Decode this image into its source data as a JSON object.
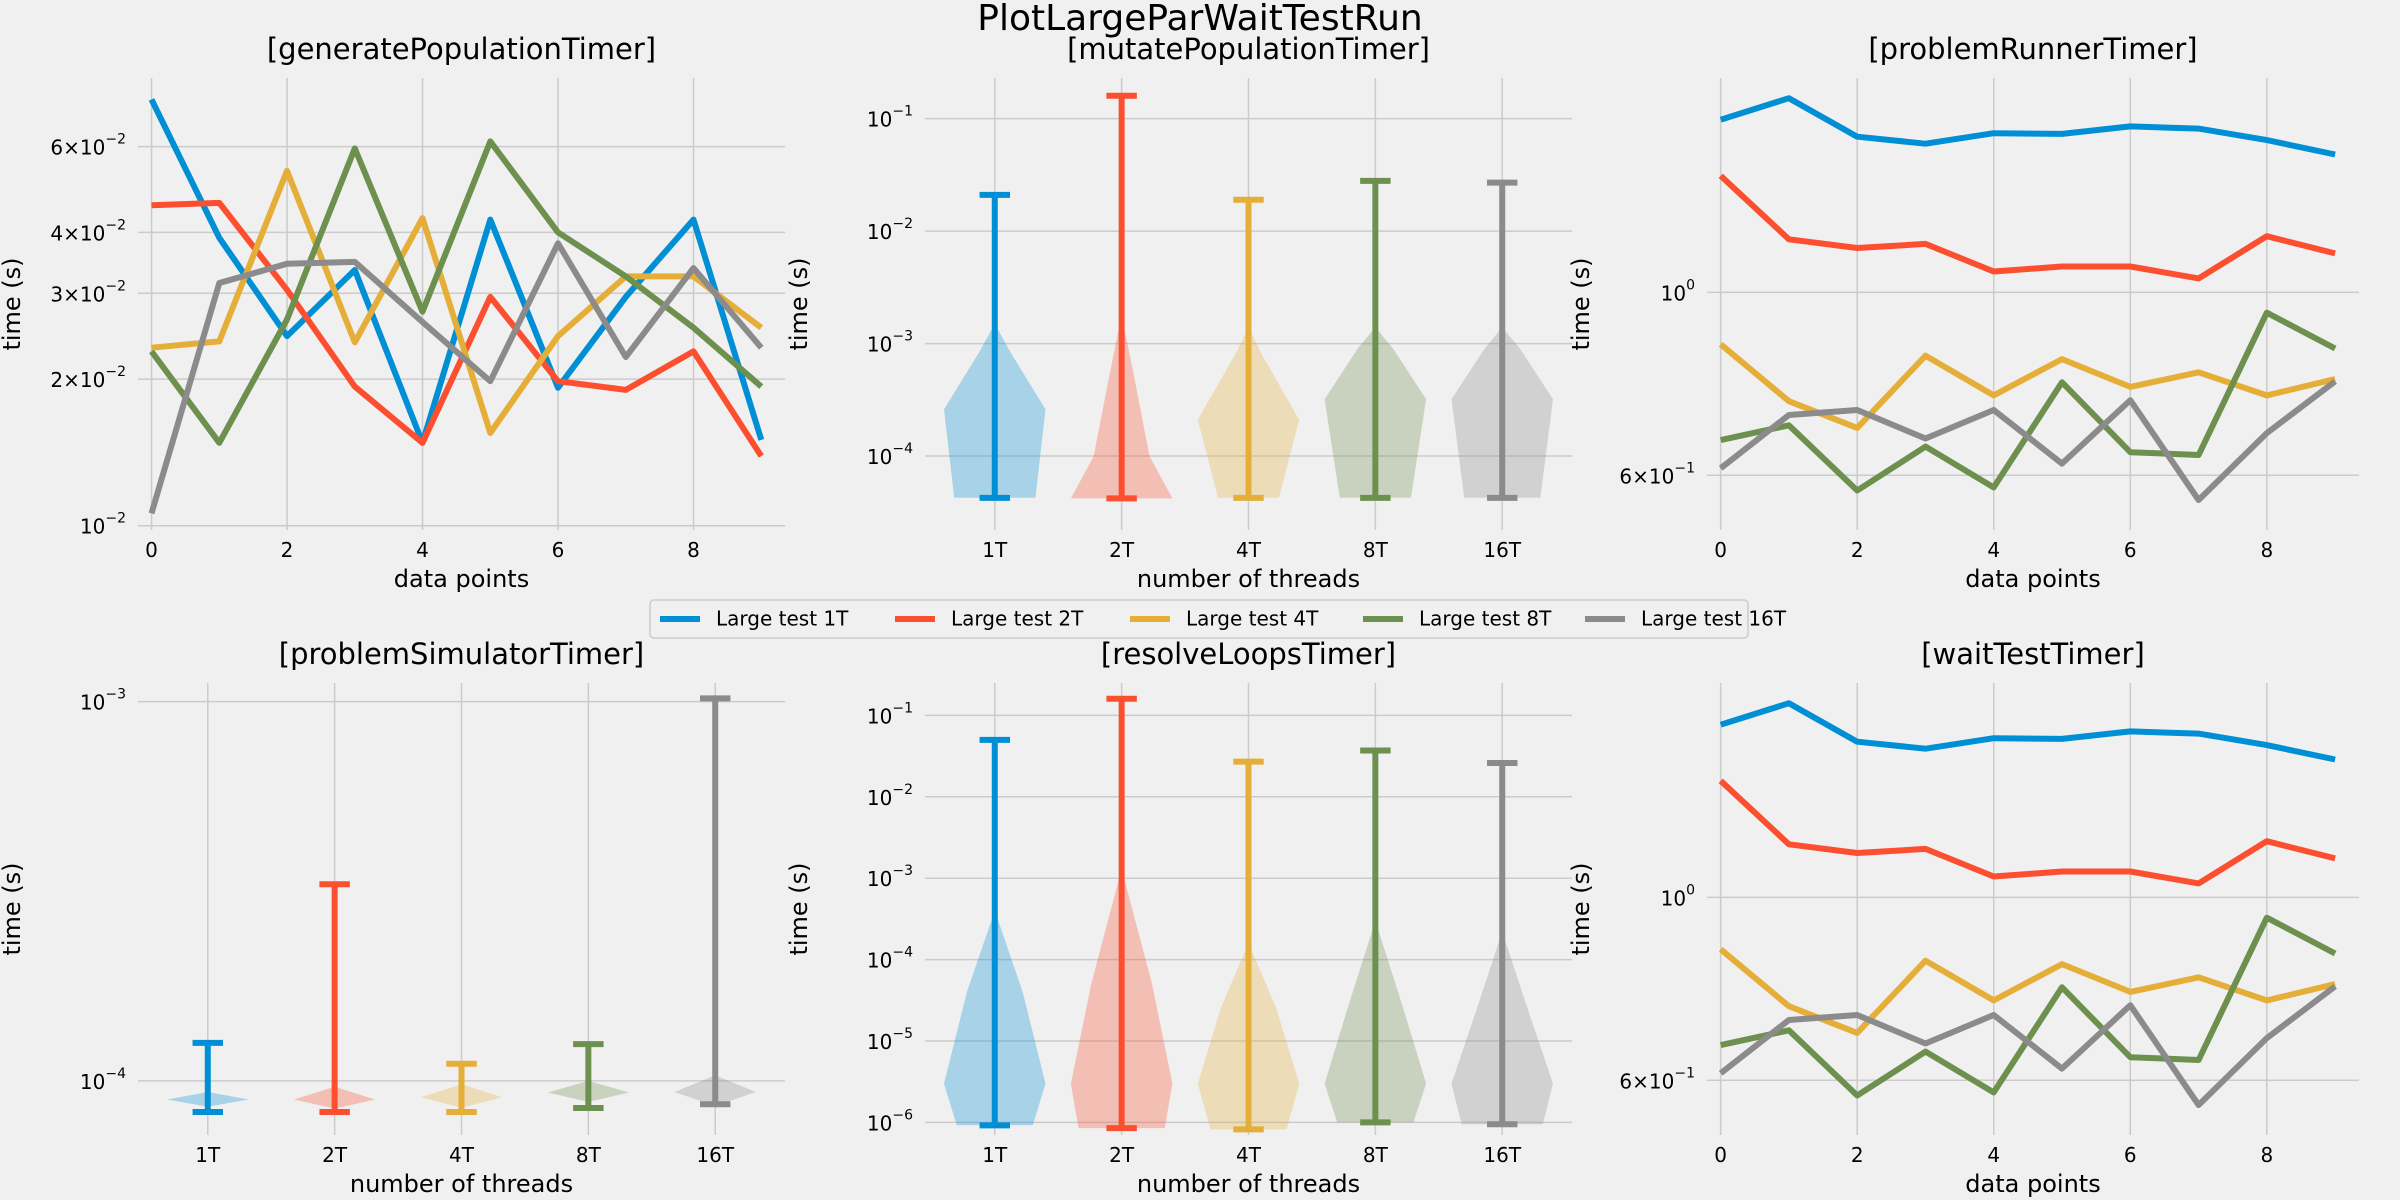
{
  "figure": {
    "title": "PlotLargeParWaitTestRun",
    "legend": [
      {
        "label": "Large test 1T",
        "color": "#008fd5"
      },
      {
        "label": "Large test 2T",
        "color": "#fc4f30"
      },
      {
        "label": "Large test 4T",
        "color": "#e5ae38"
      },
      {
        "label": "Large test 8T",
        "color": "#6d904f"
      },
      {
        "label": "Large test 16T",
        "color": "#8b8b8b"
      }
    ],
    "legend_position": "center, between rows"
  },
  "chart_data": [
    {
      "type": "line",
      "title": "[generatePopulationTimer]",
      "xlabel": "data points",
      "ylabel": "time (s)",
      "yscale": "log",
      "xlim": [
        -0.2,
        9.35
      ],
      "ylim": [
        0.0098,
        0.083
      ],
      "xticks": [
        {
          "v": 0,
          "label": "0"
        },
        {
          "v": 2,
          "label": "2"
        },
        {
          "v": 4,
          "label": "4"
        },
        {
          "v": 6,
          "label": "6"
        },
        {
          "v": 8,
          "label": "8"
        }
      ],
      "yticks": [
        {
          "v": 0.01,
          "b": "10",
          "e": "−2"
        },
        {
          "v": 0.02,
          "b": "2×10",
          "e": "−2"
        },
        {
          "v": 0.03,
          "b": "3×10",
          "e": "−2"
        },
        {
          "v": 0.04,
          "b": "4×10",
          "e": "−2"
        },
        {
          "v": 0.06,
          "b": "6×10",
          "e": "−2"
        }
      ],
      "grid": true,
      "x": [
        0,
        1,
        2,
        3,
        4,
        5,
        6,
        7,
        8,
        9
      ],
      "series": [
        {
          "name": "Large test 1T",
          "color": "#008fd5",
          "values": [
            0.075,
            0.039,
            0.0245,
            0.0335,
            0.0148,
            0.0425,
            0.0192,
            0.0295,
            0.0425,
            0.015
          ]
        },
        {
          "name": "Large test 2T",
          "color": "#fc4f30",
          "values": [
            0.0455,
            0.046,
            0.0305,
            0.0193,
            0.0148,
            0.0295,
            0.0198,
            0.019,
            0.0228,
            0.0139
          ]
        },
        {
          "name": "Large test 4T",
          "color": "#e5ae38",
          "values": [
            0.0232,
            0.0239,
            0.0535,
            0.0238,
            0.0428,
            0.0155,
            0.0245,
            0.0325,
            0.0325,
            0.0255
          ]
        },
        {
          "name": "Large test 8T",
          "color": "#6d904f",
          "values": [
            0.0228,
            0.0148,
            0.0265,
            0.0595,
            0.0275,
            0.0615,
            0.04,
            0.0325,
            0.0255,
            0.0193
          ]
        },
        {
          "name": "Large test 16T",
          "color": "#8b8b8b",
          "values": [
            0.0106,
            0.0315,
            0.0345,
            0.0348,
            0.0262,
            0.0198,
            0.038,
            0.0222,
            0.0338,
            0.0232
          ]
        }
      ]
    },
    {
      "type": "violin",
      "title": "[mutatePopulationTimer]",
      "xlabel": "number of threads",
      "ylabel": "time (s)",
      "yscale": "log",
      "xlim": [
        0.45,
        5.55
      ],
      "ylim": [
        2.2e-05,
        0.23
      ],
      "yticks": [
        {
          "v": 0.0001,
          "b": "10",
          "e": "−4"
        },
        {
          "v": 0.001,
          "b": "10",
          "e": "−3"
        },
        {
          "v": 0.01,
          "b": "10",
          "e": "−2"
        },
        {
          "v": 0.1,
          "b": "10",
          "e": "−1"
        }
      ],
      "grid": true,
      "categories": [
        "1T",
        "2T",
        "4T",
        "8T",
        "16T"
      ],
      "groups": [
        {
          "color": "#008fd5",
          "min": 4.25e-05,
          "max": 0.021,
          "density": [
            [
              4.25e-05,
              0.8
            ],
            [
              0.00026,
              1.0
            ],
            [
              0.00085,
              0.3
            ],
            [
              0.0015,
              0.0
            ]
          ]
        },
        {
          "color": "#fc4f30",
          "min": 4.2e-05,
          "max": 0.16,
          "density": [
            [
              4.2e-05,
              1.0
            ],
            [
              0.0001,
              0.55
            ],
            [
              0.0005,
              0.25
            ],
            [
              0.0018,
              0.0
            ]
          ]
        },
        {
          "color": "#e5ae38",
          "min": 4.25e-05,
          "max": 0.019,
          "density": [
            [
              4.25e-05,
              0.6
            ],
            [
              0.00021,
              1.0
            ],
            [
              0.00082,
              0.25
            ],
            [
              0.0014,
              0.0
            ]
          ]
        },
        {
          "color": "#6d904f",
          "min": 4.25e-05,
          "max": 0.028,
          "density": [
            [
              4.25e-05,
              0.7
            ],
            [
              0.00032,
              1.0
            ],
            [
              0.0009,
              0.35
            ],
            [
              0.0014,
              0.0
            ]
          ]
        },
        {
          "color": "#8b8b8b",
          "min": 4.25e-05,
          "max": 0.027,
          "density": [
            [
              4.25e-05,
              0.75
            ],
            [
              0.00032,
              1.0
            ],
            [
              0.0009,
              0.35
            ],
            [
              0.0014,
              0.0
            ]
          ]
        }
      ]
    },
    {
      "type": "line",
      "title": "[problemRunnerTimer]",
      "xlabel": "data points",
      "ylabel": "time (s)",
      "yscale": "log",
      "xlim": [
        -0.2,
        9.35
      ],
      "ylim": [
        0.515,
        1.82
      ],
      "xticks": [
        {
          "v": 0,
          "label": "0"
        },
        {
          "v": 2,
          "label": "2"
        },
        {
          "v": 4,
          "label": "4"
        },
        {
          "v": 6,
          "label": "6"
        },
        {
          "v": 8,
          "label": "8"
        }
      ],
      "yticks": [
        {
          "v": 0.6,
          "b": "6×10",
          "e": "−1"
        },
        {
          "v": 1.0,
          "b": "10",
          "e": "0"
        }
      ],
      "grid": true,
      "x": [
        0,
        1,
        2,
        3,
        4,
        5,
        6,
        7,
        8,
        9
      ],
      "series": [
        {
          "name": "Large test 1T",
          "color": "#008fd5",
          "values": [
            1.62,
            1.72,
            1.545,
            1.515,
            1.56,
            1.557,
            1.59,
            1.58,
            1.53,
            1.47
          ]
        },
        {
          "name": "Large test 2T",
          "color": "#fc4f30",
          "values": [
            1.385,
            1.16,
            1.132,
            1.145,
            1.06,
            1.075,
            1.075,
            1.04,
            1.17,
            1.115
          ]
        },
        {
          "name": "Large test 4T",
          "color": "#e5ae38",
          "values": [
            0.865,
            0.738,
            0.685,
            0.838,
            0.75,
            0.83,
            0.768,
            0.8,
            0.75,
            0.785
          ]
        },
        {
          "name": "Large test 8T",
          "color": "#6d904f",
          "values": [
            0.662,
            0.69,
            0.575,
            0.65,
            0.58,
            0.778,
            0.64,
            0.635,
            0.945,
            0.855
          ]
        },
        {
          "name": "Large test 16T",
          "color": "#8b8b8b",
          "values": [
            0.612,
            0.71,
            0.72,
            0.665,
            0.72,
            0.62,
            0.74,
            0.56,
            0.675,
            0.78
          ]
        }
      ]
    },
    {
      "type": "violin",
      "title": "[problemSimulatorTimer]",
      "xlabel": "number of threads",
      "ylabel": "time (s)",
      "yscale": "log",
      "xlim": [
        0.45,
        5.55
      ],
      "ylim": [
        7.2e-05,
        0.00112
      ],
      "yticks": [
        {
          "v": 0.0001,
          "b": "10",
          "e": "−4"
        },
        {
          "v": 0.001,
          "b": "10",
          "e": "−3"
        }
      ],
      "grid": true,
      "categories": [
        "1T",
        "2T",
        "4T",
        "8T",
        "16T"
      ],
      "groups": [
        {
          "color": "#008fd5",
          "min": 8.28e-05,
          "max": 0.000126,
          "density": [
            [
              8.55e-05,
              0.0
            ],
            [
              8.93e-05,
              0.8
            ],
            [
              9.35e-05,
              0.0
            ]
          ]
        },
        {
          "color": "#fc4f30",
          "min": 8.28e-05,
          "max": 0.00033,
          "density": [
            [
              8.45e-05,
              0.0
            ],
            [
              8.93e-05,
              0.8
            ],
            [
              9.65e-05,
              0.0
            ]
          ]
        },
        {
          "color": "#e5ae38",
          "min": 8.28e-05,
          "max": 0.000111,
          "density": [
            [
              8.5e-05,
              0.0
            ],
            [
              9.05e-05,
              0.8
            ],
            [
              9.8e-05,
              0.0
            ]
          ]
        },
        {
          "color": "#6d904f",
          "min": 8.48e-05,
          "max": 0.000125,
          "density": [
            [
              8.8e-05,
              0.0
            ],
            [
              9.32e-05,
              0.8
            ],
            [
              0.0001,
              0.0
            ]
          ]
        },
        {
          "color": "#8b8b8b",
          "min": 8.68e-05,
          "max": 0.00102,
          "density": [
            [
              8.72e-05,
              0.15
            ],
            [
              9.35e-05,
              0.8
            ],
            [
              0.0001035,
              0.0
            ]
          ]
        }
      ]
    },
    {
      "type": "violin",
      "title": "[resolveLoopsTimer]",
      "xlabel": "number of threads",
      "ylabel": "time (s)",
      "yscale": "log",
      "xlim": [
        0.45,
        5.55
      ],
      "ylim": [
        7e-07,
        0.25
      ],
      "yticks": [
        {
          "v": 1e-06,
          "b": "10",
          "e": "−6"
        },
        {
          "v": 1e-05,
          "b": "10",
          "e": "−5"
        },
        {
          "v": 0.0001,
          "b": "10",
          "e": "−4"
        },
        {
          "v": 0.001,
          "b": "10",
          "e": "−3"
        },
        {
          "v": 0.01,
          "b": "10",
          "e": "−2"
        },
        {
          "v": 0.1,
          "b": "10",
          "e": "−1"
        }
      ],
      "grid": true,
      "categories": [
        "1T",
        "2T",
        "4T",
        "8T",
        "16T"
      ],
      "groups": [
        {
          "color": "#008fd5",
          "min": 9.2e-07,
          "max": 0.05,
          "density": [
            [
              9.2e-07,
              0.75
            ],
            [
              3e-06,
              1.0
            ],
            [
              4e-05,
              0.55
            ],
            [
              0.0004,
              0.0
            ]
          ]
        },
        {
          "color": "#fc4f30",
          "min": 8.5e-07,
          "max": 0.16,
          "density": [
            [
              8.5e-07,
              0.85
            ],
            [
              3e-06,
              1.0
            ],
            [
              5e-05,
              0.6
            ],
            [
              0.0013,
              0.0
            ]
          ]
        },
        {
          "color": "#e5ae38",
          "min": 8.2e-07,
          "max": 0.027,
          "density": [
            [
              8.2e-07,
              0.75
            ],
            [
              3e-06,
              1.0
            ],
            [
              2.5e-05,
              0.55
            ],
            [
              0.00016,
              0.0
            ]
          ]
        },
        {
          "color": "#6d904f",
          "min": 1e-06,
          "max": 0.037,
          "density": [
            [
              1e-06,
              0.75
            ],
            [
              3e-06,
              1.0
            ],
            [
              2.5e-05,
              0.55
            ],
            [
              0.0003,
              0.0
            ]
          ]
        },
        {
          "color": "#8b8b8b",
          "min": 9.5e-07,
          "max": 0.026,
          "density": [
            [
              9.5e-07,
              0.8
            ],
            [
              3e-06,
              1.0
            ],
            [
              2.5e-05,
              0.5
            ],
            [
              0.00022,
              0.0
            ]
          ]
        }
      ]
    },
    {
      "type": "line",
      "title": "[waitTestTimer]",
      "xlabel": "data points",
      "ylabel": "time (s)",
      "yscale": "log",
      "xlim": [
        -0.2,
        9.35
      ],
      "ylim": [
        0.515,
        1.82
      ],
      "xticks": [
        {
          "v": 0,
          "label": "0"
        },
        {
          "v": 2,
          "label": "2"
        },
        {
          "v": 4,
          "label": "4"
        },
        {
          "v": 6,
          "label": "6"
        },
        {
          "v": 8,
          "label": "8"
        }
      ],
      "yticks": [
        {
          "v": 0.6,
          "b": "6×10",
          "e": "−1"
        },
        {
          "v": 1.0,
          "b": "10",
          "e": "0"
        }
      ],
      "grid": true,
      "x": [
        0,
        1,
        2,
        3,
        4,
        5,
        6,
        7,
        8,
        9
      ],
      "series": [
        {
          "name": "Large test 1T",
          "color": "#008fd5",
          "values": [
            1.62,
            1.72,
            1.545,
            1.515,
            1.56,
            1.557,
            1.59,
            1.58,
            1.53,
            1.47
          ]
        },
        {
          "name": "Large test 2T",
          "color": "#fc4f30",
          "values": [
            1.385,
            1.16,
            1.132,
            1.145,
            1.06,
            1.075,
            1.075,
            1.04,
            1.17,
            1.115
          ]
        },
        {
          "name": "Large test 4T",
          "color": "#e5ae38",
          "values": [
            0.865,
            0.738,
            0.685,
            0.838,
            0.75,
            0.83,
            0.768,
            0.8,
            0.75,
            0.785
          ]
        },
        {
          "name": "Large test 8T",
          "color": "#6d904f",
          "values": [
            0.662,
            0.69,
            0.575,
            0.65,
            0.58,
            0.778,
            0.64,
            0.635,
            0.945,
            0.855
          ]
        },
        {
          "name": "Large test 16T",
          "color": "#8b8b8b",
          "values": [
            0.612,
            0.71,
            0.72,
            0.665,
            0.72,
            0.62,
            0.74,
            0.56,
            0.675,
            0.78
          ]
        }
      ]
    }
  ]
}
